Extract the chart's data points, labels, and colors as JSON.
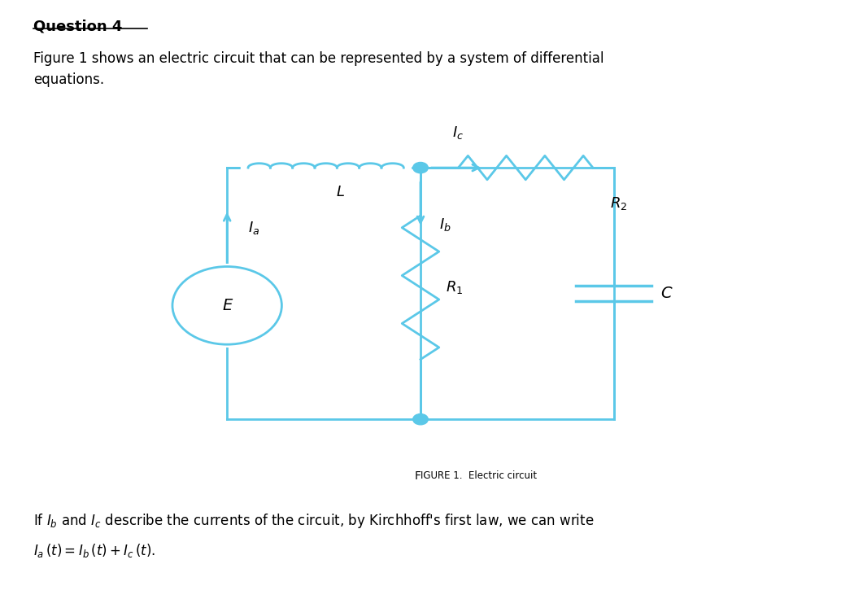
{
  "title": "Question 4",
  "background_color": "#ffffff",
  "circuit_color": "#5bc8e8",
  "text_color": "#000000",
  "figure_caption": "Figure 1.  Electric circuit",
  "paragraph1": "Figure 1 shows an electric circuit that can be represented by a system of differential\nequations.",
  "OL": 0.27,
  "OR": 0.73,
  "OT": 0.72,
  "OB": 0.3,
  "IL": 0.5
}
